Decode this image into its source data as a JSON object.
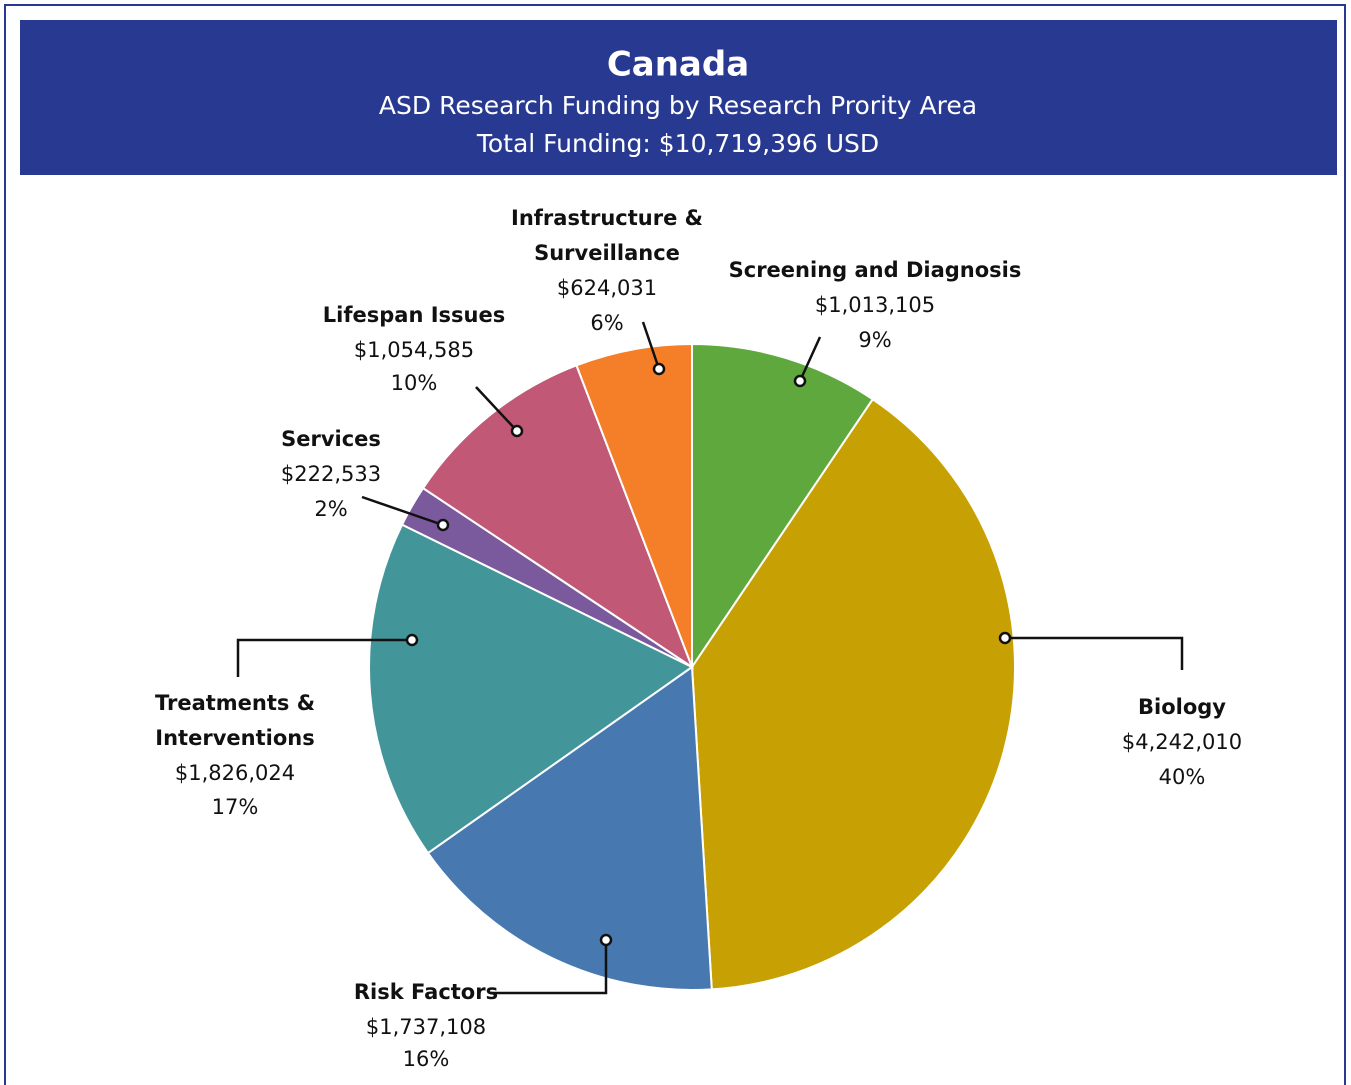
{
  "chart_data": {
    "type": "pie",
    "title": "Canada",
    "subtitle": "ASD Research Funding by Research Prority Area",
    "subtitle2": "Total Funding: $10,719,396 USD",
    "categories": [
      "Screening and Diagnosis",
      "Biology",
      "Risk Factors",
      "Treatments & Interventions",
      "Services",
      "Lifespan Issues",
      "Infrastructure & Surveillance"
    ],
    "values": [
      1013105,
      4242010,
      1737108,
      1826024,
      222533,
      1054585,
      624031
    ],
    "value_labels": [
      "$1,013,105",
      "$4,242,010",
      "$1,737,108",
      "$1,826,024",
      "$222,533",
      "$1,054,585",
      "$624,031"
    ],
    "percentages": [
      9,
      40,
      16,
      17,
      2,
      10,
      6
    ],
    "percentage_labels": [
      "9%",
      "40%",
      "16%",
      "17%",
      "2%",
      "10%",
      "6%"
    ],
    "colors": [
      "#5ea83e",
      "#c7a004",
      "#4779b0",
      "#42969a",
      "#7a5a9c",
      "#c05876",
      "#f47f28"
    ]
  }
}
